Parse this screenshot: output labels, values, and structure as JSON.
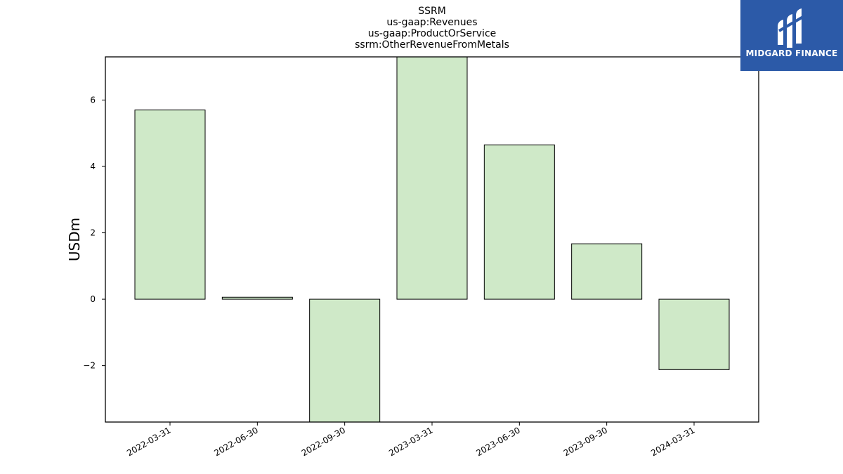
{
  "chart_data": {
    "type": "bar",
    "title": [
      "SSRM",
      "us-gaap:Revenues",
      "us-gaap:ProductOrService",
      "ssrm:OtherRevenueFromMetals"
    ],
    "ylabel": "USDm",
    "xlabel": "",
    "categories": [
      "2022-03-31",
      "2022-06-30",
      "2022-09-30",
      "2023-03-31",
      "2023-06-30",
      "2023-09-30",
      "2024-03-31"
    ],
    "values": [
      5.7,
      0.06,
      -3.75,
      7.3,
      4.65,
      1.67,
      -2.12
    ],
    "ylim": [
      -3.7,
      7.3
    ],
    "yticks": [
      -2,
      0,
      2,
      4,
      6
    ],
    "ytick_labels": [
      "−2",
      "0",
      "2",
      "4",
      "6"
    ],
    "bar_color": "#cfe9c8",
    "bar_edge_color": "#000000",
    "grid": false,
    "legend": "none"
  },
  "logo": {
    "text": "MIDGARD FINANCE",
    "background": "#2c5aa8",
    "icon": "midgard-m-icon"
  }
}
